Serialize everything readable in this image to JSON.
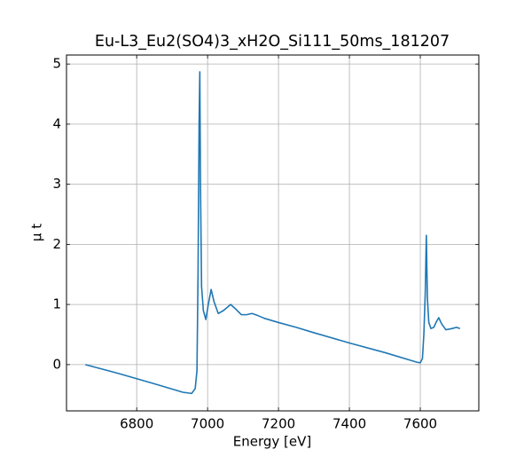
{
  "chart_data": {
    "type": "line",
    "title": "Eu-L3_Eu2(SO4)3_xH2O_Si111_50ms_181207",
    "x_label": "Energy [eV]",
    "y_label": "μ t",
    "series": [
      {
        "name": "Eu-L3_Eu2(SO4)3_xH2O_Si111_50ms_181207",
        "color": "#1f77b4",
        "x": [
          6655,
          6750,
          6850,
          6930,
          6955,
          6965,
          6970,
          6973,
          6976,
          6978,
          6980,
          6983,
          6988,
          6995,
          7002,
          7010,
          7018,
          7030,
          7045,
          7065,
          7080,
          7095,
          7110,
          7125,
          7140,
          7160,
          7200,
          7250,
          7300,
          7400,
          7500,
          7590,
          7600,
          7606,
          7610,
          7614,
          7617,
          7620,
          7624,
          7630,
          7638,
          7646,
          7652,
          7660,
          7672,
          7690,
          7702,
          7712
        ],
        "values": [
          0.0,
          -0.15,
          -0.32,
          -0.46,
          -0.48,
          -0.4,
          -0.1,
          1.5,
          4.0,
          4.87,
          3.0,
          1.3,
          0.9,
          0.75,
          1.0,
          1.25,
          1.05,
          0.85,
          0.9,
          1.0,
          0.92,
          0.83,
          0.83,
          0.85,
          0.82,
          0.77,
          0.7,
          0.62,
          0.53,
          0.36,
          0.2,
          0.04,
          0.03,
          0.1,
          0.5,
          1.2,
          2.15,
          1.1,
          0.7,
          0.6,
          0.62,
          0.72,
          0.78,
          0.68,
          0.58,
          0.6,
          0.62,
          0.6
        ]
      }
    ],
    "xlim": [
      6602,
      7765
    ],
    "ylim": [
      -0.77,
      5.15
    ],
    "xticks": [
      6800,
      7000,
      7200,
      7400,
      7600
    ],
    "yticks": [
      0,
      1,
      2,
      3,
      4,
      5
    ],
    "grid": true
  }
}
